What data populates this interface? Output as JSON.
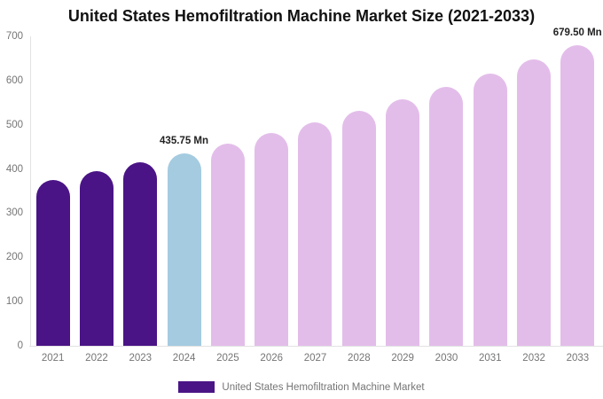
{
  "title": "United States Hemofiltration Machine Market Size (2021-2033)",
  "legend": {
    "label": "United States Hemofiltration Machine Market",
    "swatch_color": "#4a1486"
  },
  "colors": {
    "historical_bar": "#4a1486",
    "current_year_bar": "#a4cbe0",
    "forecast_bar": "#e3bdea",
    "axis_line": "#e2e2e2",
    "tick_text": "#757575",
    "title_text": "#111111",
    "annotation_text": "#222222"
  },
  "chart_data": {
    "type": "bar",
    "title": "United States Hemofiltration Machine Market Size (2021-2033)",
    "categories": [
      "2021",
      "2022",
      "2023",
      "2024",
      "2025",
      "2026",
      "2027",
      "2028",
      "2029",
      "2030",
      "2031",
      "2032",
      "2033"
    ],
    "values": [
      376,
      395,
      415,
      435.75,
      458,
      481,
      505,
      531,
      558,
      586,
      616,
      647,
      679.5
    ],
    "unit": "Mn",
    "xlabel": "",
    "ylabel": "",
    "ylim": [
      0,
      700
    ],
    "y_ticks": [
      0,
      100,
      200,
      300,
      400,
      500,
      600,
      700
    ],
    "grid": false,
    "legend_position": "bottom",
    "bar_colors": [
      "#4a1486",
      "#4a1486",
      "#4a1486",
      "#a4cbe0",
      "#e3bdea",
      "#e3bdea",
      "#e3bdea",
      "#e3bdea",
      "#e3bdea",
      "#e3bdea",
      "#e3bdea",
      "#e3bdea",
      "#e3bdea"
    ],
    "annotations": [
      {
        "category": "2024",
        "label": "435.75 Mn"
      },
      {
        "category": "2033",
        "label": "679.50 Mn"
      }
    ]
  }
}
